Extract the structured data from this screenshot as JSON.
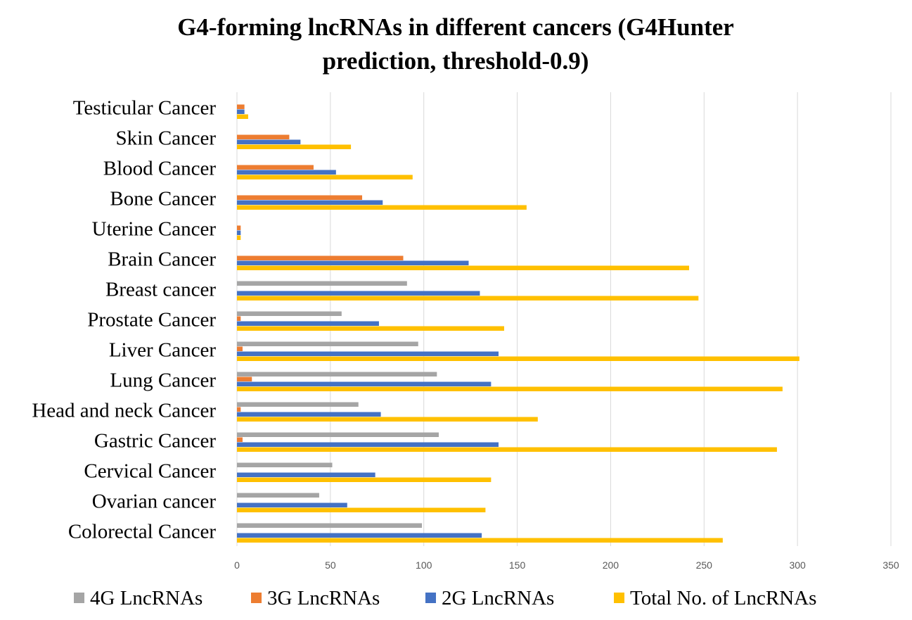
{
  "chart_data": {
    "type": "bar",
    "orientation": "horizontal",
    "title_lines": [
      "G4-forming lncRNAs in different cancers (G4Hunter",
      "prediction, threshold-0.9)"
    ],
    "categories": [
      "Testicular Cancer",
      "Skin Cancer",
      "Blood Cancer",
      "Bone Cancer",
      "Uterine Cancer",
      "Brain Cancer",
      "Breast cancer",
      "Prostate Cancer",
      "Liver Cancer",
      "Lung Cancer",
      "Head and neck Cancer",
      "Gastric Cancer",
      "Cervical Cancer",
      "Ovarian cancer",
      "Colorectal Cancer"
    ],
    "series": [
      {
        "name": "4G LncRNAs",
        "color": "#a5a5a5",
        "values": [
          0,
          0,
          0,
          0,
          0,
          0,
          91,
          56,
          97,
          107,
          65,
          108,
          51,
          44,
          99
        ]
      },
      {
        "name": "3G LncRNAs",
        "color": "#ed7d31",
        "values": [
          4,
          28,
          41,
          67,
          2,
          89,
          0,
          2,
          3,
          8,
          2,
          3,
          0,
          0,
          0
        ]
      },
      {
        "name": "2G LncRNAs",
        "color": "#4472c4",
        "values": [
          4,
          34,
          53,
          78,
          2,
          124,
          130,
          76,
          140,
          136,
          77,
          140,
          74,
          59,
          131
        ]
      },
      {
        "name": "Total No. of LncRNAs",
        "color": "#ffc000",
        "values": [
          6,
          61,
          94,
          155,
          2,
          242,
          247,
          143,
          301,
          292,
          161,
          289,
          136,
          133,
          260
        ]
      }
    ],
    "xlim": [
      0,
      350
    ],
    "xticks": [
      "0",
      "50",
      "100",
      "150",
      "200",
      "250",
      "300",
      "350"
    ],
    "grid": true,
    "legend_position": "bottom"
  }
}
